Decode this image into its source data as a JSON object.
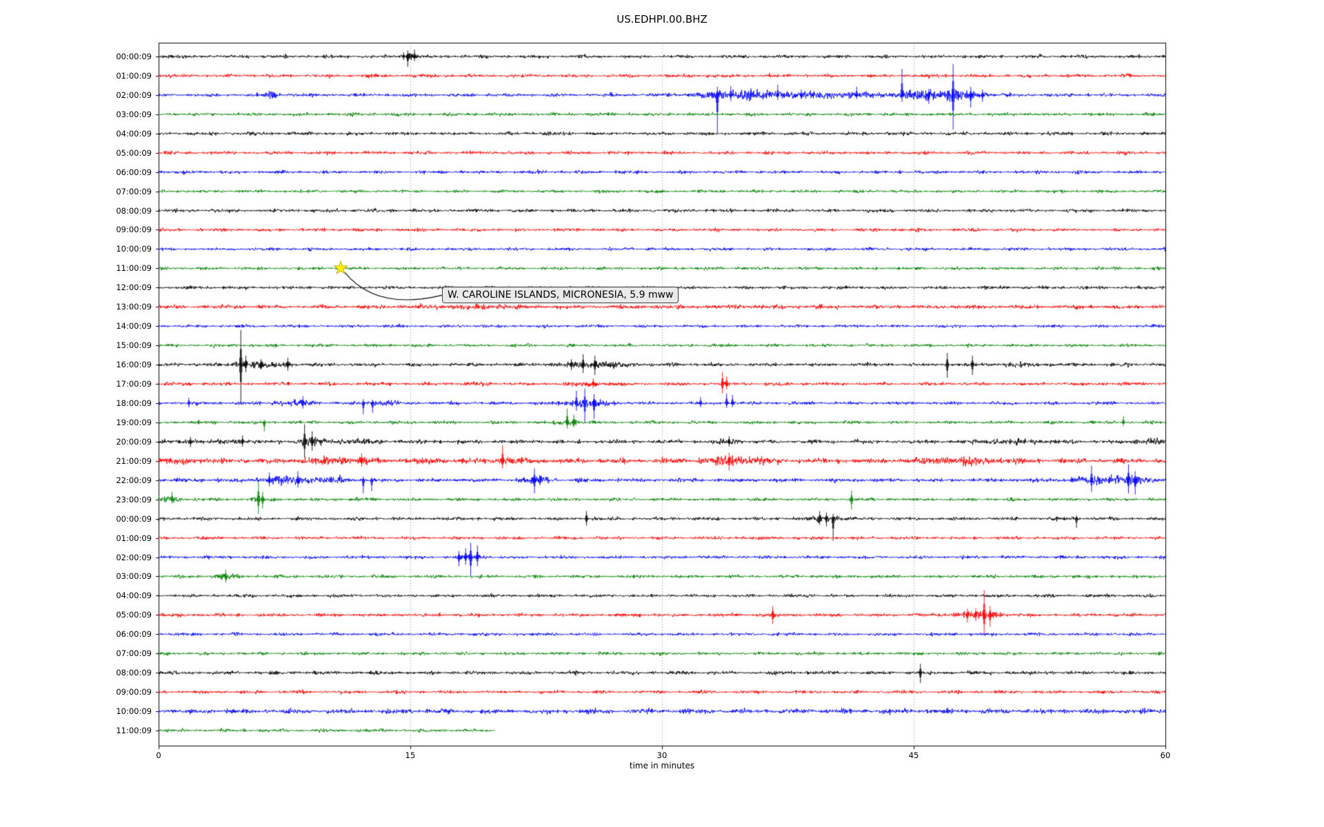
{
  "chart_data": {
    "type": "line",
    "subtype": "helicorder-dayplot",
    "title": "US.EDHPI.00.BHZ",
    "xlabel": "time in minutes",
    "x_ticks": [
      "0",
      "15",
      "30",
      "45",
      "60"
    ],
    "x_tick_minutes": [
      0,
      15,
      30,
      45,
      60
    ],
    "x_range_minutes": [
      0,
      60
    ],
    "grid": {
      "vertical_minutes": [
        15,
        30,
        45
      ],
      "style": "dotted",
      "color": "#8a8a8a"
    },
    "color_cycle": [
      "#000000",
      "#ff0000",
      "#0000ff",
      "#008000"
    ],
    "frame_color": "#000000",
    "annotation": {
      "text": "W. CAROLINE ISLANDS, MICRONESIA, 5.9 mww",
      "row": 11,
      "minute": 10.85,
      "star_color": "#ffee00"
    },
    "rows": [
      {
        "label": "00:00:09",
        "color": "#000000",
        "noise": 1.05,
        "end": 60,
        "events": [
          {
            "t": 15.0,
            "w": 0.3,
            "a": 5
          }
        ],
        "spikes": [
          {
            "t": 14.6,
            "up": 6,
            "down": 5
          },
          {
            "t": 14.85,
            "up": 9,
            "down": 15
          },
          {
            "t": 15.25,
            "up": 10,
            "down": 7
          }
        ]
      },
      {
        "label": "01:00:09",
        "color": "#ff0000",
        "noise": 1.1,
        "end": 60,
        "events": [],
        "spikes": []
      },
      {
        "label": "02:00:09",
        "color": "#0000ff",
        "noise": 1.05,
        "end": 60,
        "events": [
          {
            "t": 6.8,
            "w": 0.35,
            "a": 5
          },
          {
            "t": 34.5,
            "w": 1.5,
            "a": 5
          },
          {
            "t": 38,
            "w": 2.5,
            "a": 3
          },
          {
            "t": 41,
            "w": 6,
            "a": 2
          },
          {
            "t": 45.6,
            "w": 1.2,
            "a": 5
          },
          {
            "t": 47.5,
            "w": 1.0,
            "a": 6
          }
        ],
        "spikes": [
          {
            "t": 33.3,
            "up": 12,
            "down": 55
          },
          {
            "t": 34.1,
            "up": 13,
            "down": 9
          },
          {
            "t": 35.3,
            "up": 10,
            "down": 7
          },
          {
            "t": 36.9,
            "up": 15,
            "down": 7
          },
          {
            "t": 38.3,
            "up": 8,
            "down": 6
          },
          {
            "t": 41.6,
            "up": 12,
            "down": 6
          },
          {
            "t": 44.3,
            "up": 38,
            "down": 10
          },
          {
            "t": 45.9,
            "up": 9,
            "down": 13
          },
          {
            "t": 47.35,
            "up": 45,
            "down": 50
          },
          {
            "t": 48.4,
            "up": 12,
            "down": 18
          },
          {
            "t": 49.1,
            "up": 8,
            "down": 10
          }
        ]
      },
      {
        "label": "03:00:09",
        "color": "#008000",
        "noise": 1.05,
        "end": 60,
        "events": [],
        "spikes": []
      },
      {
        "label": "04:00:09",
        "color": "#000000",
        "noise": 1.1,
        "end": 60,
        "events": [],
        "spikes": []
      },
      {
        "label": "05:00:09",
        "color": "#ff0000",
        "noise": 1.05,
        "end": 60,
        "events": [],
        "spikes": []
      },
      {
        "label": "06:00:09",
        "color": "#0000ff",
        "noise": 1.0,
        "end": 60,
        "events": [],
        "spikes": []
      },
      {
        "label": "07:00:09",
        "color": "#008000",
        "noise": 0.95,
        "end": 60,
        "events": [],
        "spikes": []
      },
      {
        "label": "08:00:09",
        "color": "#000000",
        "noise": 1.05,
        "end": 60,
        "events": [],
        "spikes": []
      },
      {
        "label": "09:00:09",
        "color": "#ff0000",
        "noise": 1.0,
        "end": 60,
        "events": [],
        "spikes": []
      },
      {
        "label": "10:00:09",
        "color": "#0000ff",
        "noise": 0.95,
        "end": 60,
        "events": [],
        "spikes": []
      },
      {
        "label": "11:00:09",
        "color": "#008000",
        "noise": 0.95,
        "end": 60,
        "events": [],
        "spikes": []
      },
      {
        "label": "12:00:09",
        "color": "#000000",
        "noise": 1.0,
        "end": 60,
        "events": [],
        "spikes": []
      },
      {
        "label": "13:00:09",
        "color": "#ff0000",
        "noise": 1.25,
        "end": 60,
        "events": [
          {
            "t": 19,
            "w": 2.5,
            "a": 1.5
          },
          {
            "t": 33,
            "w": 3,
            "a": 1
          }
        ],
        "spikes": []
      },
      {
        "label": "14:00:09",
        "color": "#0000ff",
        "noise": 0.95,
        "end": 60,
        "events": [],
        "spikes": []
      },
      {
        "label": "15:00:09",
        "color": "#008000",
        "noise": 0.95,
        "end": 60,
        "events": [],
        "spikes": []
      },
      {
        "label": "16:00:09",
        "color": "#000000",
        "noise": 1.1,
        "end": 60,
        "events": [
          {
            "t": 5.6,
            "w": 0.7,
            "a": 6
          },
          {
            "t": 7.7,
            "w": 0.35,
            "a": 4
          },
          {
            "t": 25.5,
            "w": 1.3,
            "a": 4
          },
          {
            "t": 27.3,
            "w": 0.9,
            "a": 2
          },
          {
            "t": 51.5,
            "w": 1.2,
            "a": 2
          }
        ],
        "spikes": [
          {
            "t": 4.9,
            "up": 50,
            "down": 56
          },
          {
            "t": 5.2,
            "up": 13,
            "down": 11
          },
          {
            "t": 6.1,
            "up": 8,
            "down": 7
          },
          {
            "t": 7.7,
            "up": 10,
            "down": 9
          },
          {
            "t": 24.6,
            "up": 8,
            "down": 8
          },
          {
            "t": 25.3,
            "up": 15,
            "down": 12
          },
          {
            "t": 26.0,
            "up": 13,
            "down": 15
          },
          {
            "t": 47.0,
            "up": 17,
            "down": 19
          },
          {
            "t": 48.5,
            "up": 13,
            "down": 15
          }
        ]
      },
      {
        "label": "17:00:09",
        "color": "#ff0000",
        "noise": 1.1,
        "end": 60,
        "events": [
          {
            "t": 19.3,
            "w": 0.3,
            "a": 2
          },
          {
            "t": 25.7,
            "w": 0.9,
            "a": 3
          }
        ],
        "spikes": [
          {
            "t": 25.9,
            "up": 8,
            "down": 6
          },
          {
            "t": 33.6,
            "up": 17,
            "down": 14
          },
          {
            "t": 33.85,
            "up": 11,
            "down": 8
          }
        ]
      },
      {
        "label": "18:00:09",
        "color": "#0000ff",
        "noise": 1.05,
        "end": 60,
        "events": [
          {
            "t": 7.1,
            "w": 0.5,
            "a": 3
          },
          {
            "t": 8.5,
            "w": 0.45,
            "a": 5
          },
          {
            "t": 13.3,
            "w": 0.45,
            "a": 4
          },
          {
            "t": 25.5,
            "w": 1.0,
            "a": 6
          }
        ],
        "spikes": [
          {
            "t": 1.8,
            "up": 8,
            "down": 6
          },
          {
            "t": 8.6,
            "up": 10,
            "down": 8
          },
          {
            "t": 12.2,
            "up": 6,
            "down": 16
          },
          {
            "t": 12.75,
            "up": 5,
            "down": 14
          },
          {
            "t": 24.9,
            "up": 18,
            "down": 11
          },
          {
            "t": 25.4,
            "up": 21,
            "down": 27
          },
          {
            "t": 25.95,
            "up": 13,
            "down": 23
          },
          {
            "t": 32.3,
            "up": 9,
            "down": 6
          },
          {
            "t": 33.85,
            "up": 14,
            "down": 7
          },
          {
            "t": 34.2,
            "up": 12,
            "down": 6
          }
        ]
      },
      {
        "label": "19:00:09",
        "color": "#008000",
        "noise": 1.0,
        "end": 60,
        "events": [
          {
            "t": 24.5,
            "w": 0.5,
            "a": 4
          }
        ],
        "spikes": [
          {
            "t": 6.3,
            "up": 4,
            "down": 13
          },
          {
            "t": 24.35,
            "up": 20,
            "down": 9
          },
          {
            "t": 24.75,
            "up": 11,
            "down": 7
          },
          {
            "t": 57.5,
            "up": 9,
            "down": 5
          }
        ]
      },
      {
        "label": "20:00:09",
        "color": "#000000",
        "noise": 1.2,
        "end": 60,
        "events": [
          {
            "t": 1.8,
            "w": 0.35,
            "a": 3
          },
          {
            "t": 4.8,
            "w": 0.5,
            "a": 3
          },
          {
            "t": 9,
            "w": 0.6,
            "a": 6
          },
          {
            "t": 11.8,
            "w": 1.2,
            "a": 3
          },
          {
            "t": 34,
            "w": 0.5,
            "a": 4
          },
          {
            "t": 50.8,
            "w": 1.8,
            "a": 3
          },
          {
            "t": 59.5,
            "w": 1.0,
            "a": 4
          }
        ],
        "spikes": [
          {
            "t": 1.9,
            "up": 7,
            "down": 8
          },
          {
            "t": 5.0,
            "up": 9,
            "down": 7
          },
          {
            "t": 8.7,
            "up": 25,
            "down": 23
          },
          {
            "t": 9.15,
            "up": 15,
            "down": 13
          },
          {
            "t": 34.0,
            "up": 8,
            "down": 7
          }
        ]
      },
      {
        "label": "21:00:09",
        "color": "#ff0000",
        "noise": 1.6,
        "end": 60,
        "events": [
          {
            "t": 2,
            "w": 1,
            "a": 2
          },
          {
            "t": 10.5,
            "w": 1.6,
            "a": 4
          },
          {
            "t": 16.2,
            "w": 0.6,
            "a": 3
          },
          {
            "t": 21,
            "w": 0.9,
            "a": 4
          },
          {
            "t": 34.4,
            "w": 1.3,
            "a": 6
          },
          {
            "t": 48,
            "w": 1.4,
            "a": 5
          }
        ],
        "spikes": [
          {
            "t": 12.1,
            "up": 11,
            "down": 8
          },
          {
            "t": 20.5,
            "up": 23,
            "down": 11
          },
          {
            "t": 34.0,
            "up": 12,
            "down": 14
          }
        ]
      },
      {
        "label": "22:00:09",
        "color": "#0000ff",
        "noise": 1.25,
        "end": 60,
        "events": [
          {
            "t": 7.8,
            "w": 1.3,
            "a": 6
          },
          {
            "t": 10.6,
            "w": 0.5,
            "a": 4
          },
          {
            "t": 22.6,
            "w": 0.6,
            "a": 5
          },
          {
            "t": 56.8,
            "w": 1.6,
            "a": 6
          }
        ],
        "spikes": [
          {
            "t": 6.6,
            "up": 11,
            "down": 9
          },
          {
            "t": 8.3,
            "up": 13,
            "down": 11
          },
          {
            "t": 12.2,
            "up": 5,
            "down": 19
          },
          {
            "t": 12.7,
            "up": 4,
            "down": 16
          },
          {
            "t": 22.4,
            "up": 17,
            "down": 19
          },
          {
            "t": 55.6,
            "up": 21,
            "down": 17
          },
          {
            "t": 57.8,
            "up": 23,
            "down": 19
          },
          {
            "t": 58.2,
            "up": 13,
            "down": 21
          }
        ]
      },
      {
        "label": "23:00:09",
        "color": "#008000",
        "noise": 1.0,
        "end": 60,
        "events": [
          {
            "t": 0.5,
            "w": 0.6,
            "a": 3
          },
          {
            "t": 6,
            "w": 0.35,
            "a": 3
          }
        ],
        "spikes": [
          {
            "t": 0.8,
            "up": 11,
            "down": 6
          },
          {
            "t": 5.95,
            "up": 26,
            "down": 21
          },
          {
            "t": 6.2,
            "up": 11,
            "down": 13
          },
          {
            "t": 41.3,
            "up": 13,
            "down": 15
          }
        ]
      },
      {
        "label": "00:00:09",
        "color": "#000000",
        "noise": 1.05,
        "end": 60,
        "events": [
          {
            "t": 39.7,
            "w": 0.7,
            "a": 5
          }
        ],
        "spikes": [
          {
            "t": 25.5,
            "up": 11,
            "down": 10
          },
          {
            "t": 39.4,
            "up": 11,
            "down": 9
          },
          {
            "t": 39.8,
            "up": 9,
            "down": 11
          },
          {
            "t": 40.2,
            "up": 7,
            "down": 32
          },
          {
            "t": 54.7,
            "up": 5,
            "down": 13
          }
        ]
      },
      {
        "label": "01:00:09",
        "color": "#ff0000",
        "noise": 1.0,
        "end": 60,
        "events": [],
        "spikes": []
      },
      {
        "label": "02:00:09",
        "color": "#0000ff",
        "noise": 1.0,
        "end": 60,
        "events": [
          {
            "t": 18.5,
            "w": 0.55,
            "a": 4
          }
        ],
        "spikes": [
          {
            "t": 17.9,
            "up": 9,
            "down": 13
          },
          {
            "t": 18.3,
            "up": 13,
            "down": 11
          },
          {
            "t": 18.6,
            "up": 21,
            "down": 27
          },
          {
            "t": 19.0,
            "up": 17,
            "down": 13
          }
        ]
      },
      {
        "label": "03:00:09",
        "color": "#008000",
        "noise": 1.0,
        "end": 60,
        "events": [
          {
            "t": 4.0,
            "w": 0.45,
            "a": 5
          }
        ],
        "spikes": [
          {
            "t": 4.0,
            "up": 10,
            "down": 9
          }
        ]
      },
      {
        "label": "04:00:09",
        "color": "#000000",
        "noise": 1.0,
        "end": 60,
        "events": [],
        "spikes": []
      },
      {
        "label": "05:00:09",
        "color": "#ff0000",
        "noise": 1.05,
        "end": 60,
        "events": [
          {
            "t": 36.6,
            "w": 0.25,
            "a": 3
          },
          {
            "t": 48.8,
            "w": 1.1,
            "a": 5
          }
        ],
        "spikes": [
          {
            "t": 36.6,
            "up": 13,
            "down": 13
          },
          {
            "t": 48.2,
            "up": 9,
            "down": 11
          },
          {
            "t": 48.7,
            "up": 10,
            "down": 9
          },
          {
            "t": 49.2,
            "up": 36,
            "down": 30
          },
          {
            "t": 49.55,
            "up": 13,
            "down": 17
          }
        ]
      },
      {
        "label": "06:00:09",
        "color": "#0000ff",
        "noise": 1.0,
        "end": 60,
        "events": [],
        "spikes": []
      },
      {
        "label": "07:00:09",
        "color": "#008000",
        "noise": 0.95,
        "end": 60,
        "events": [],
        "spikes": []
      },
      {
        "label": "08:00:09",
        "color": "#000000",
        "noise": 1.15,
        "end": 60,
        "events": [],
        "spikes": [
          {
            "t": 45.4,
            "up": 13,
            "down": 15
          }
        ]
      },
      {
        "label": "09:00:09",
        "color": "#ff0000",
        "noise": 1.0,
        "end": 60,
        "events": [],
        "spikes": []
      },
      {
        "label": "10:00:09",
        "color": "#0000ff",
        "noise": 1.55,
        "end": 60,
        "events": [],
        "spikes": []
      },
      {
        "label": "11:00:09",
        "color": "#008000",
        "noise": 1.0,
        "end": 20.05,
        "events": [],
        "spikes": []
      }
    ]
  }
}
